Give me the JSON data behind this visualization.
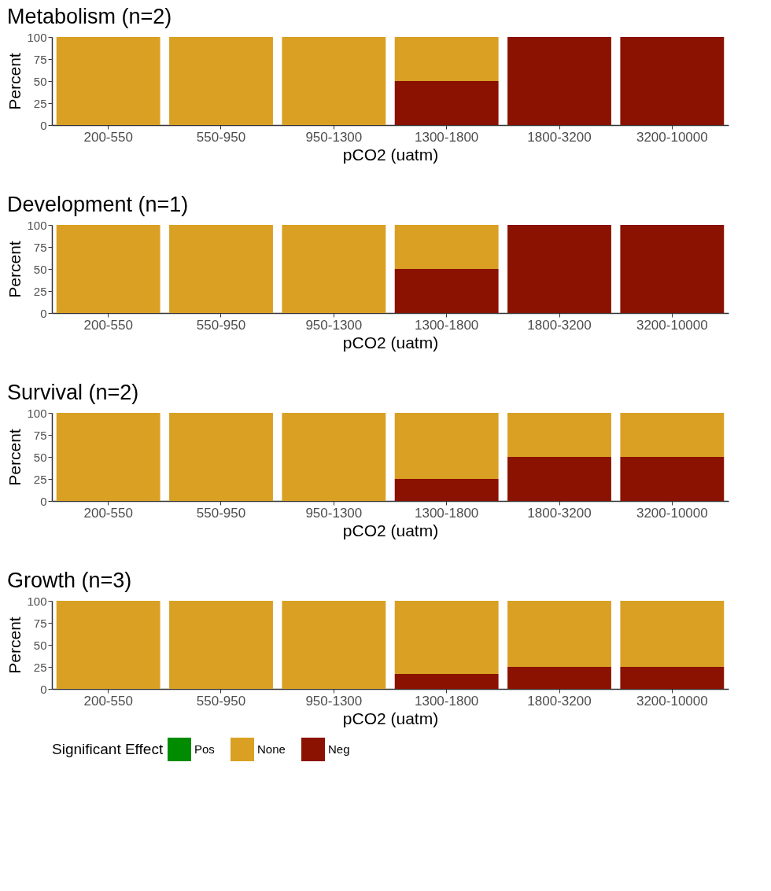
{
  "chart_data": [
    {
      "type": "bar",
      "title": "Metabolism (n=2)",
      "xlabel": "pCO2 (uatm)",
      "ylabel": "Percent",
      "categories": [
        "200-550",
        "550-950",
        "950-1300",
        "1300-1800",
        "1800-3200",
        "3200-10000"
      ],
      "stacked": true,
      "ylim": [
        0,
        100
      ],
      "yticks": [
        0,
        25,
        50,
        75,
        100
      ],
      "grid": false,
      "series": [
        {
          "color": "#8b1100",
          "values": [
            0,
            0,
            0,
            50,
            100,
            100
          ]
        },
        {
          "color": "#d9a023",
          "values": [
            100,
            100,
            100,
            50,
            0,
            0
          ]
        },
        {
          "color": "#008b00",
          "values": [
            0,
            0,
            0,
            0,
            0,
            0
          ]
        }
      ]
    },
    {
      "type": "bar",
      "title": "Development (n=1)",
      "xlabel": "pCO2 (uatm)",
      "ylabel": "Percent",
      "categories": [
        "200-550",
        "550-950",
        "950-1300",
        "1300-1800",
        "1800-3200",
        "3200-10000"
      ],
      "stacked": true,
      "ylim": [
        0,
        100
      ],
      "yticks": [
        0,
        25,
        50,
        75,
        100
      ],
      "grid": false,
      "series": [
        {
          "color": "#8b1100",
          "values": [
            0,
            0,
            0,
            50,
            100,
            100
          ]
        },
        {
          "color": "#d9a023",
          "values": [
            100,
            100,
            100,
            50,
            0,
            0
          ]
        },
        {
          "color": "#008b00",
          "values": [
            0,
            0,
            0,
            0,
            0,
            0
          ]
        }
      ]
    },
    {
      "type": "bar",
      "title": "Survival (n=2)",
      "xlabel": "pCO2 (uatm)",
      "ylabel": "Percent",
      "categories": [
        "200-550",
        "550-950",
        "950-1300",
        "1300-1800",
        "1800-3200",
        "3200-10000"
      ],
      "stacked": true,
      "ylim": [
        0,
        100
      ],
      "yticks": [
        0,
        25,
        50,
        75,
        100
      ],
      "grid": false,
      "series": [
        {
          "color": "#8b1100",
          "values": [
            0,
            0,
            0,
            25,
            50,
            50
          ]
        },
        {
          "color": "#d9a023",
          "values": [
            100,
            100,
            100,
            75,
            50,
            50
          ]
        },
        {
          "color": "#008b00",
          "values": [
            0,
            0,
            0,
            0,
            0,
            0
          ]
        }
      ]
    },
    {
      "type": "bar",
      "title": "Growth (n=3)",
      "xlabel": "pCO2 (uatm)",
      "ylabel": "Percent",
      "categories": [
        "200-550",
        "550-950",
        "950-1300",
        "1300-1800",
        "1800-3200",
        "3200-10000"
      ],
      "stacked": true,
      "ylim": [
        0,
        100
      ],
      "yticks": [
        0,
        25,
        50,
        75,
        100
      ],
      "grid": false,
      "legend": "bottom",
      "legend_title": "Significant Effect",
      "series": [
        {
          "name": "Neg",
          "color": "#8b1100",
          "values": [
            0,
            0,
            0,
            17,
            25,
            25
          ]
        },
        {
          "name": "None",
          "color": "#d9a023",
          "values": [
            100,
            100,
            100,
            83,
            75,
            75
          ]
        },
        {
          "name": "Pos",
          "color": "#008b00",
          "values": [
            0,
            0,
            0,
            0,
            0,
            0
          ]
        }
      ]
    }
  ]
}
